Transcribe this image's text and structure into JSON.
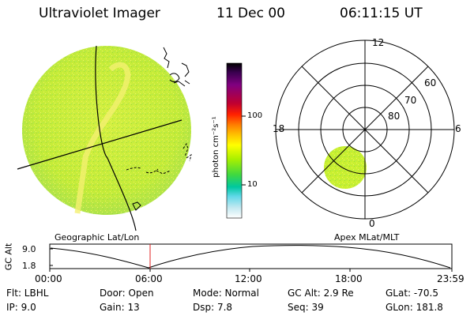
{
  "header": {
    "instrument": "Ultraviolet Imager",
    "date": "11 Dec 00",
    "time": "06:11:15 UT"
  },
  "colorbar": {
    "unit_label": "photon cm⁻²s⁻¹",
    "ticks": [
      "100",
      "10"
    ],
    "colors": [
      "#000000",
      "#3a0050",
      "#800080",
      "#c00030",
      "#ff2000",
      "#ff8000",
      "#ffc000",
      "#ffff00",
      "#a8f000",
      "#40d840",
      "#00c8a0",
      "#60d8e8",
      "#c0e8f0",
      "#ffffff"
    ]
  },
  "projection_labels": {
    "left": "Geographic Lat/Lon",
    "right": "Apex MLat/MLT"
  },
  "polar": {
    "mlt_labels": {
      "top": "12",
      "left": "18",
      "right": "6",
      "bottom": "0"
    },
    "lat_labels": [
      "60",
      "70",
      "80"
    ]
  },
  "altitude_plot": {
    "axis_label": "GC Alt",
    "y_ticks": [
      "9.0",
      "1.8"
    ],
    "time_ticks": [
      "00:00",
      "06:00",
      "12:00",
      "18:00",
      "23:59"
    ],
    "marker_time": "06:11"
  },
  "status": {
    "flt": "Flt:  LBHL",
    "ip": "IP:  9.0",
    "door": "Door: Open",
    "gain": "Gain: 13",
    "mode": "Mode: Normal",
    "dsp": "Dsp:     7.8",
    "gcalt": "GC Alt: 2.9 Re",
    "seq": "Seq: 39",
    "glat": "GLat: -70.5",
    "glon": "GLon: 181.8"
  },
  "colors": {
    "image_fill": "#c8f030",
    "image_bright": "#f0f060",
    "marker": "#e02020"
  }
}
